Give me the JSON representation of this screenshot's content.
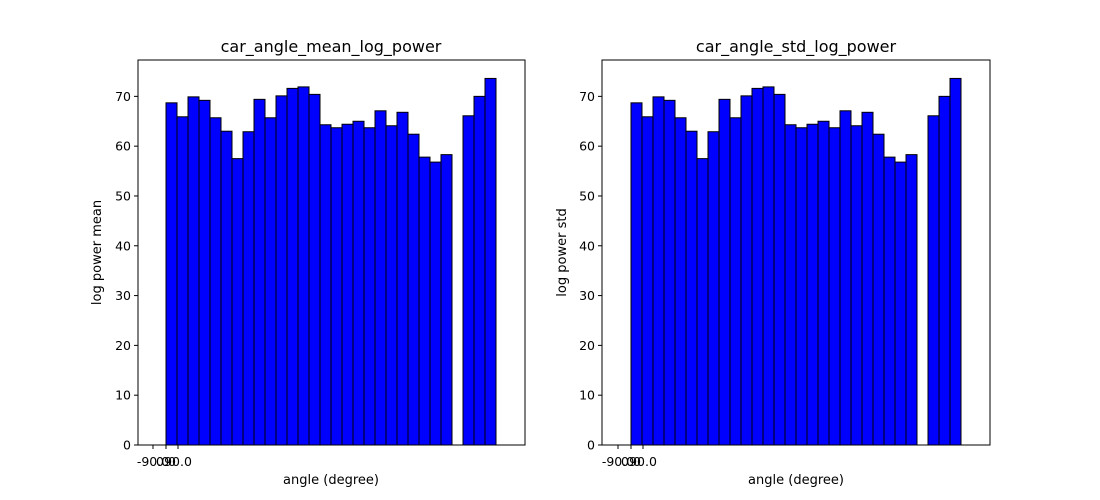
{
  "chart_data": [
    {
      "type": "bar",
      "title": "car_angle_mean_log_power",
      "xlabel": "angle (degree)",
      "ylabel": "log power mean",
      "x_tick_labels": [
        "-90.0",
        "0.0",
        "90.0"
      ],
      "yticks": [
        0,
        10,
        20,
        30,
        40,
        50,
        60,
        70
      ],
      "ylim": [
        0,
        77.3
      ],
      "bar_color": "#0000ff",
      "edge_color": "#000000",
      "values": [
        68.7,
        65.9,
        69.9,
        69.2,
        65.7,
        63.0,
        57.5,
        62.9,
        69.4,
        65.7,
        70.1,
        71.6,
        71.9,
        70.4,
        64.3,
        63.7,
        64.4,
        65.0,
        63.7,
        67.1,
        64.1,
        66.8,
        62.4,
        57.8,
        56.8,
        58.3,
        0,
        66.1,
        70.0,
        73.6,
        0
      ]
    },
    {
      "type": "bar",
      "title": "car_angle_std_log_power",
      "xlabel": "angle (degree)",
      "ylabel": "log power std",
      "x_tick_labels": [
        "-90.0",
        "0.0",
        "90.0"
      ],
      "yticks": [
        0,
        10,
        20,
        30,
        40,
        50,
        60,
        70
      ],
      "ylim": [
        0,
        77.3
      ],
      "bar_color": "#0000ff",
      "edge_color": "#000000",
      "values": [
        68.7,
        65.9,
        69.9,
        69.2,
        65.7,
        63.0,
        57.5,
        62.9,
        69.4,
        65.7,
        70.1,
        71.6,
        71.9,
        70.4,
        64.3,
        63.7,
        64.4,
        65.0,
        63.7,
        67.1,
        64.1,
        66.8,
        62.4,
        57.8,
        56.8,
        58.3,
        0,
        66.1,
        70.0,
        73.6,
        0
      ]
    }
  ]
}
